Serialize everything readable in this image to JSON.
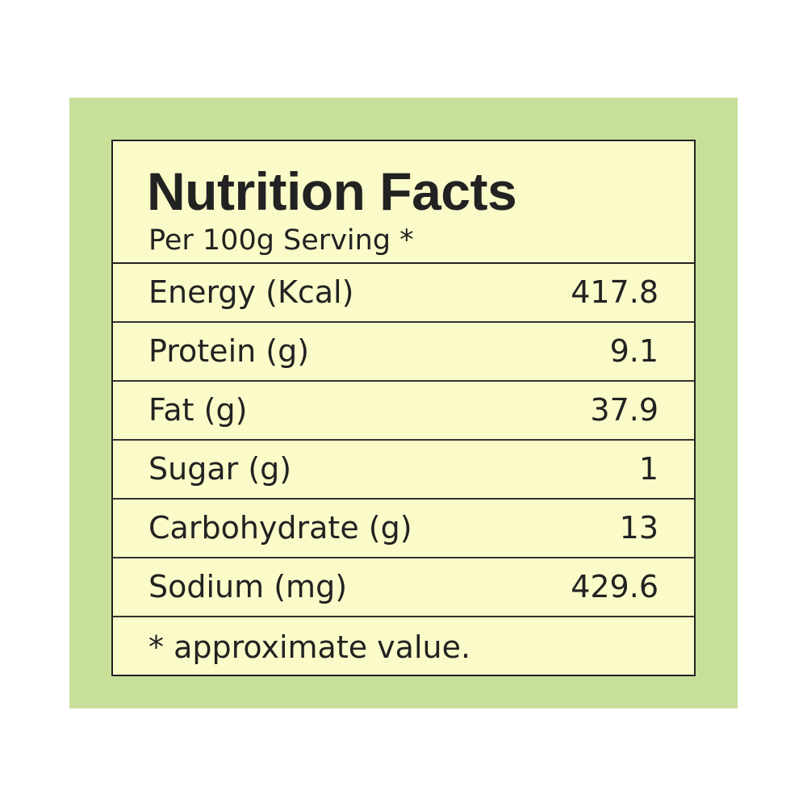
{
  "label": {
    "title": "Nutrition Facts",
    "subtitle": "Per 100g Serving *",
    "rows": [
      {
        "name": "Energy (Kcal)",
        "value": "417.8"
      },
      {
        "name": "Protein (g)",
        "value": "9.1"
      },
      {
        "name": "Fat (g)",
        "value": "37.9"
      },
      {
        "name": "Sugar (g)",
        "value": "1"
      },
      {
        "name": "Carbohydrate (g)",
        "value": "13"
      },
      {
        "name": "Sodium (mg)",
        "value": "429.6"
      }
    ],
    "footnote": "* approximate value."
  },
  "colors": {
    "panel_green": "#c8df9a",
    "label_cream": "#fbfbc9",
    "ink": "#222222"
  }
}
